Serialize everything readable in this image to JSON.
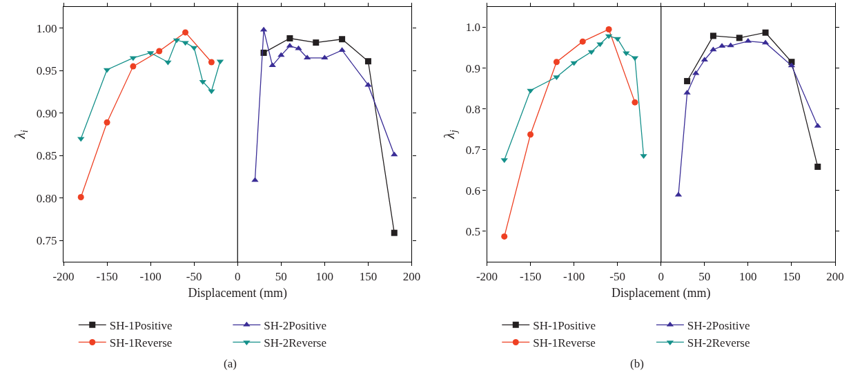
{
  "chart_data": [
    {
      "type": "line",
      "xlabel": "Displacement (mm)",
      "ylabel": "λ$_{i}$",
      "xlim": [
        -200,
        200
      ],
      "xticks": [
        -200,
        -150,
        -100,
        -50,
        0,
        50,
        100,
        150,
        200
      ],
      "ylim": [
        0.725,
        1.025
      ],
      "yticks": [
        {
          "value": 0.75,
          "label": "0.75"
        },
        {
          "value": 0.8,
          "label": "0.80"
        },
        {
          "value": 0.85,
          "label": "0.85"
        },
        {
          "value": 0.9,
          "label": "0.90"
        },
        {
          "value": 0.95,
          "label": "0.95"
        },
        {
          "value": 1.0,
          "label": "1.00"
        }
      ],
      "legend": "bottom",
      "line_style": "solid",
      "ref_lines": [
        {
          "axis": "x",
          "value": 0,
          "color": "#000000"
        }
      ],
      "annotations": [
        "(a)"
      ],
      "series": [
        {
          "name": "SH-1Positive",
          "color": "#231f20",
          "marker": "square",
          "x": [
            30,
            60,
            90,
            120,
            150,
            180
          ],
          "values": [
            0.971,
            0.988,
            0.983,
            0.987,
            0.961,
            0.759
          ]
        },
        {
          "name": "SH-2Positive",
          "color": "#3a2d96",
          "marker": "triangle",
          "x": [
            20,
            30,
            40,
            50,
            60,
            70,
            80,
            100,
            120,
            150,
            180
          ],
          "values": [
            0.821,
            0.998,
            0.956,
            0.968,
            0.979,
            0.976,
            0.965,
            0.965,
            0.974,
            0.933,
            0.851
          ]
        },
        {
          "name": "SH-1Reverse",
          "color": "#ee4023",
          "marker": "circle",
          "x": [
            -180,
            -150,
            -120,
            -90,
            -60,
            -30
          ],
          "values": [
            0.801,
            0.889,
            0.955,
            0.973,
            0.995,
            0.96
          ]
        },
        {
          "name": "SH-2Reverse",
          "color": "#14908a",
          "marker": "triangle-down",
          "x": [
            -180,
            -150,
            -120,
            -100,
            -80,
            -70,
            -60,
            -50,
            -40,
            -30,
            -20
          ],
          "values": [
            0.87,
            0.951,
            0.965,
            0.971,
            0.96,
            0.986,
            0.983,
            0.977,
            0.937,
            0.926,
            0.961
          ]
        }
      ]
    },
    {
      "type": "line",
      "xlabel": "Displacement (mm)",
      "ylabel": "λ$_{j}$",
      "xlim": [
        -200,
        200
      ],
      "xticks": [
        -200,
        -150,
        -100,
        -50,
        0,
        50,
        100,
        150,
        200
      ],
      "ylim": [
        0.425,
        1.05
      ],
      "yticks": [
        0.5,
        0.6,
        0.7,
        0.8,
        0.9,
        {
          "value": 1.0,
          "label": "1.0"
        }
      ],
      "legend": "bottom",
      "line_style": "solid",
      "ref_lines": [
        {
          "axis": "x",
          "value": 0,
          "color": "#000000"
        }
      ],
      "annotations": [
        "(b)"
      ],
      "series": [
        {
          "name": "SH-1Positive",
          "color": "#231f20",
          "marker": "square",
          "x": [
            30,
            60,
            90,
            120,
            150,
            180
          ],
          "values": [
            0.868,
            0.979,
            0.974,
            0.987,
            0.915,
            0.658
          ]
        },
        {
          "name": "SH-2Positive",
          "color": "#3a2d96",
          "marker": "triangle",
          "x": [
            20,
            30,
            40,
            50,
            60,
            70,
            80,
            100,
            120,
            150,
            180
          ],
          "values": [
            0.589,
            0.839,
            0.887,
            0.92,
            0.945,
            0.954,
            0.955,
            0.966,
            0.962,
            0.906,
            0.758
          ]
        },
        {
          "name": "SH-1Reverse",
          "color": "#ee4023",
          "marker": "circle",
          "x": [
            -180,
            -150,
            -120,
            -90,
            -60,
            -30
          ],
          "values": [
            0.487,
            0.737,
            0.915,
            0.965,
            0.995,
            0.816
          ]
        },
        {
          "name": "SH-2Reverse",
          "color": "#14908a",
          "marker": "triangle-down",
          "x": [
            -180,
            -150,
            -120,
            -100,
            -80,
            -70,
            -60,
            -50,
            -40,
            -30,
            -20
          ],
          "values": [
            0.675,
            0.845,
            0.878,
            0.913,
            0.94,
            0.959,
            0.979,
            0.972,
            0.937,
            0.925,
            0.685
          ]
        }
      ]
    }
  ]
}
